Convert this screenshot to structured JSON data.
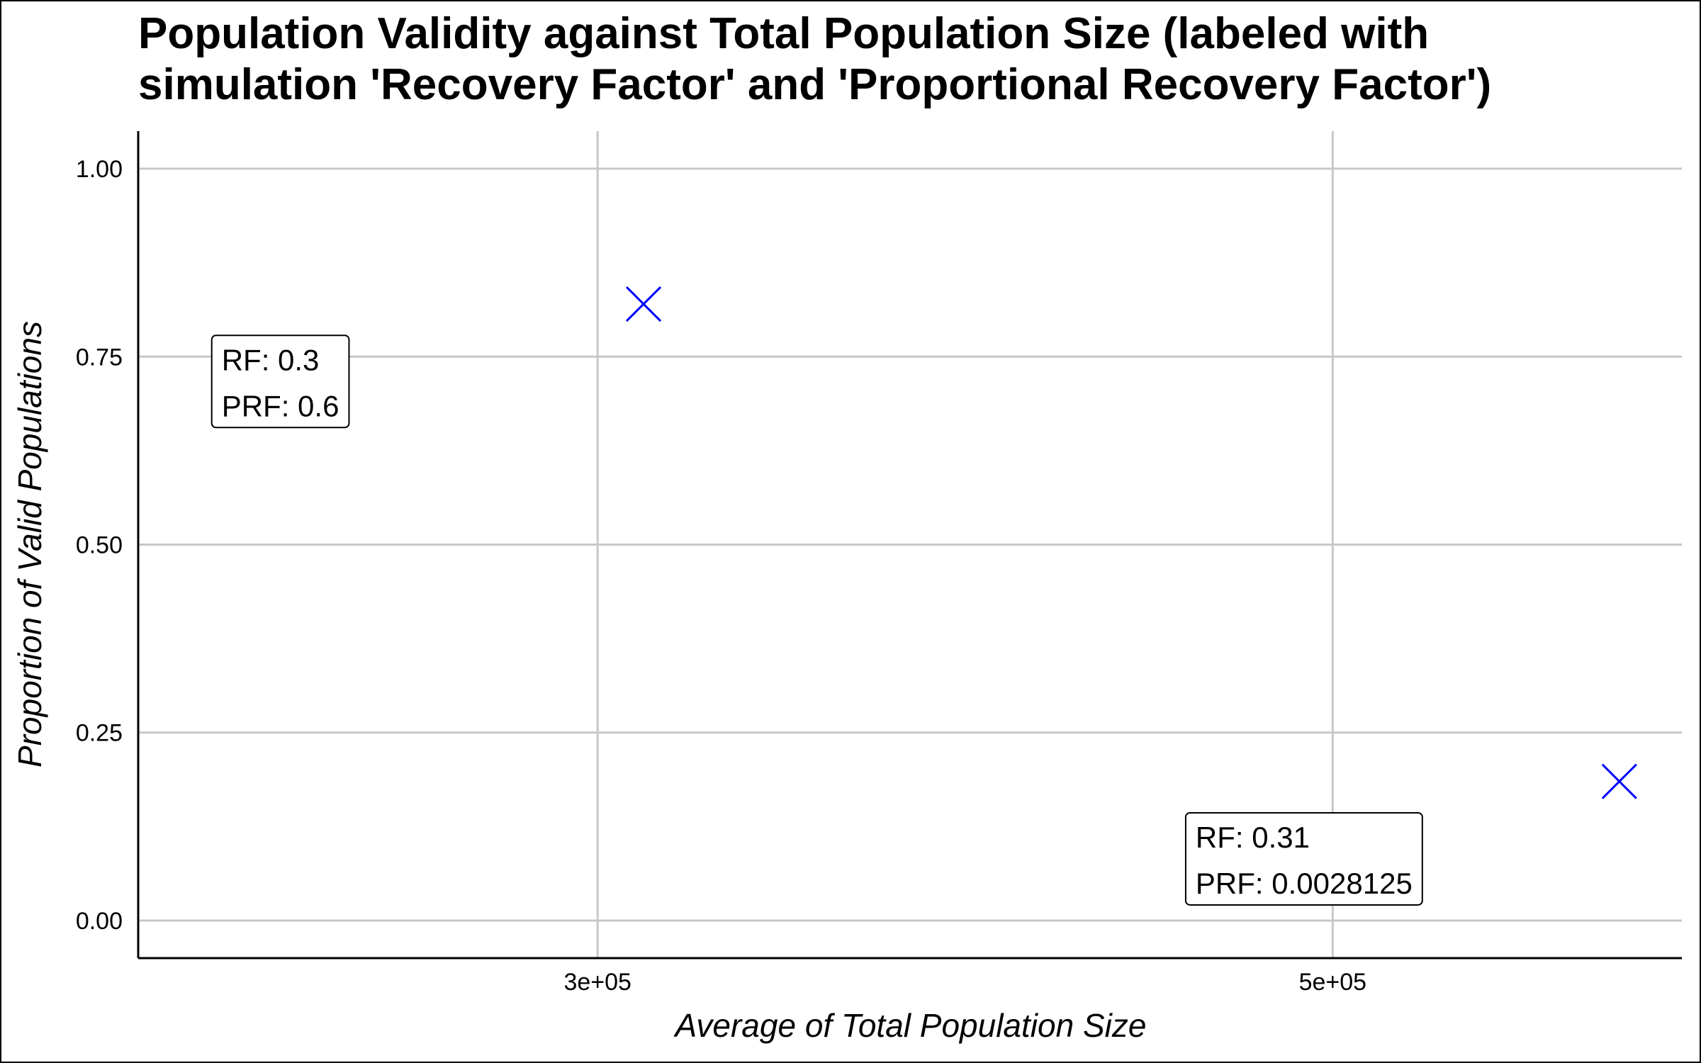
{
  "chart_data": {
    "type": "scatter",
    "title_lines": [
      "Population Validity against Total Population Size (labeled with",
      "simulation 'Recovery Factor' and 'Proportional Recovery Factor')"
    ],
    "xlabel": "Average of Total Population Size",
    "ylabel": "Proportion of Valid Populations",
    "xlim": [
      175000,
      595000
    ],
    "ylim": [
      -0.05,
      1.05
    ],
    "x_ticks": [
      {
        "value": 300000,
        "label": "3e+05"
      },
      {
        "value": 500000,
        "label": "5e+05"
      }
    ],
    "y_ticks": [
      {
        "value": 0.0,
        "label": "0.00"
      },
      {
        "value": 0.25,
        "label": "0.25"
      },
      {
        "value": 0.5,
        "label": "0.50"
      },
      {
        "value": 0.75,
        "label": "0.75"
      },
      {
        "value": 1.0,
        "label": "1.00"
      }
    ],
    "points": [
      {
        "x": 312500,
        "y": 0.82
      },
      {
        "x": 578000,
        "y": 0.185
      }
    ],
    "annotations": [
      {
        "x": 195000,
        "y": 0.75,
        "line1": "RF:  0.3",
        "line2": "PRF:  0.6"
      },
      {
        "x": 460000,
        "y": 0.115,
        "line1": "RF:  0.31",
        "line2": "PRF:  0.0028125"
      }
    ],
    "marker": "x",
    "marker_color": "#0000ff",
    "grid": true,
    "legend": "none"
  }
}
